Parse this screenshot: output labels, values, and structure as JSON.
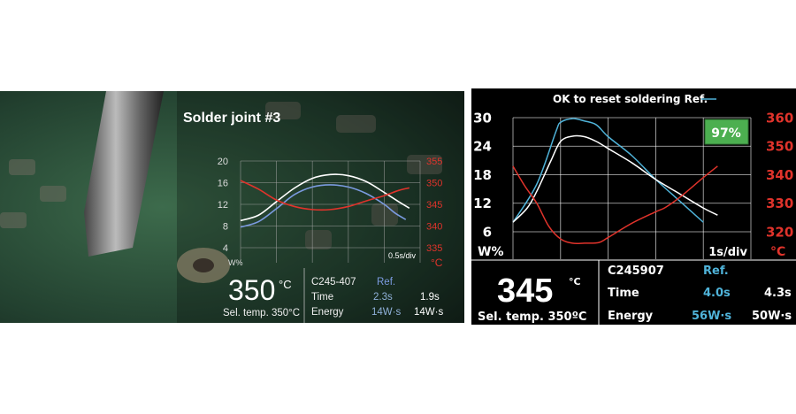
{
  "left_panel": {
    "title": "Solder joint #3",
    "temperature": "350",
    "temp_unit": "°C",
    "selected_temp": "Sel. temp. 350°C",
    "cartridge": "C245-407",
    "ref_label": "Ref.",
    "time_label": "Time",
    "time_ref": "2.3s",
    "time_value": "1.9s",
    "energy_label": "Energy",
    "energy_ref": "14W·s",
    "energy_value": "14W·s"
  },
  "right_panel": {
    "header": "OK to reset soldering Ref.",
    "match_badge": "97%",
    "temperature": "345",
    "temp_unit": "°C",
    "selected_temp": "Sel. temp. 350ºC",
    "cartridge": "C245907",
    "ref_label": "Ref.",
    "time_label": "Time",
    "time_ref": "4.0s",
    "time_value": "4.3s",
    "energy_label": "Energy",
    "energy_ref": "56W·s",
    "energy_value": "50W·s"
  },
  "colors": {
    "power": "#ffffff",
    "reference": "#4fb3d9",
    "temperature": "#e0332b",
    "badge": "#4caf50"
  },
  "chart_data": [
    {
      "type": "line",
      "xlabel": "0.5s/div",
      "ylabel": "W%",
      "y2label": "°C",
      "xlim": [
        0,
        2.5
      ],
      "ylim": [
        4,
        20
      ],
      "y2lim": [
        335,
        355
      ],
      "yticks": [
        "20",
        "16",
        "12",
        "8",
        "4"
      ],
      "y2ticks": [
        "355",
        "350",
        "345",
        "340",
        "335"
      ],
      "grid": true,
      "series": [
        {
          "axis": "left",
          "color": "#ffffff",
          "x": [
            0,
            0.25,
            0.5,
            0.75,
            1.0,
            1.25,
            1.5,
            1.75,
            2.0,
            2.2,
            2.35
          ],
          "y": [
            9,
            10,
            12.5,
            15,
            16.8,
            17.5,
            17.3,
            16.2,
            14.2,
            12.5,
            11.3
          ]
        },
        {
          "axis": "left",
          "color": "#7b9be0",
          "x": [
            0,
            0.25,
            0.5,
            0.75,
            1.0,
            1.25,
            1.5,
            1.75,
            2.0,
            2.15,
            2.3
          ],
          "y": [
            7.8,
            8.8,
            11.2,
            13.8,
            15.2,
            15.6,
            15.2,
            14,
            12,
            10.4,
            9.2
          ]
        },
        {
          "axis": "right",
          "color": "#e0332b",
          "x": [
            0,
            0.25,
            0.5,
            0.75,
            1.0,
            1.25,
            1.5,
            1.75,
            2.0,
            2.2,
            2.35
          ],
          "y": [
            350.5,
            348.5,
            346,
            344.5,
            343.8,
            343.8,
            344.5,
            345.8,
            347,
            348.2,
            348.8
          ]
        }
      ]
    },
    {
      "type": "line",
      "xlabel": "1s/div",
      "ylabel": "W%",
      "y2label": "°C",
      "xlim": [
        0,
        5
      ],
      "ylim": [
        0,
        30
      ],
      "y2lim": [
        310,
        360
      ],
      "yticks": [
        "30",
        "24",
        "18",
        "12",
        "6"
      ],
      "y2ticks": [
        "360",
        "350",
        "340",
        "330",
        "320"
      ],
      "grid": true,
      "series": [
        {
          "name": "Ref.",
          "axis": "left",
          "color": "#4fb3d9",
          "x": [
            0,
            0.5,
            0.9,
            1.0,
            1.25,
            1.5,
            1.75,
            2.0,
            2.5,
            3.0,
            3.5,
            4.0
          ],
          "y": [
            8,
            16,
            27,
            29,
            29.8,
            29.3,
            28.5,
            26,
            22,
            17,
            12.5,
            8
          ]
        },
        {
          "axis": "left",
          "color": "#ffffff",
          "x": [
            0,
            0.3,
            0.5,
            0.8,
            1.0,
            1.25,
            1.5,
            1.75,
            2.0,
            2.5,
            3.0,
            3.5,
            4.0,
            4.3
          ],
          "y": [
            8,
            11,
            14.5,
            21,
            25,
            26.1,
            26,
            25,
            23.5,
            20.5,
            17,
            14,
            11,
            9.5
          ]
        },
        {
          "axis": "right",
          "color": "#e0332b",
          "x": [
            0,
            0.25,
            0.5,
            0.75,
            1.0,
            1.25,
            1.5,
            1.8,
            2.0,
            2.5,
            3.0,
            3.2,
            3.5,
            4.0,
            4.3
          ],
          "y": [
            343,
            336,
            330,
            322,
            317.5,
            316,
            316,
            316.2,
            318,
            323,
            327,
            328.5,
            332,
            339,
            343
          ]
        }
      ]
    }
  ]
}
